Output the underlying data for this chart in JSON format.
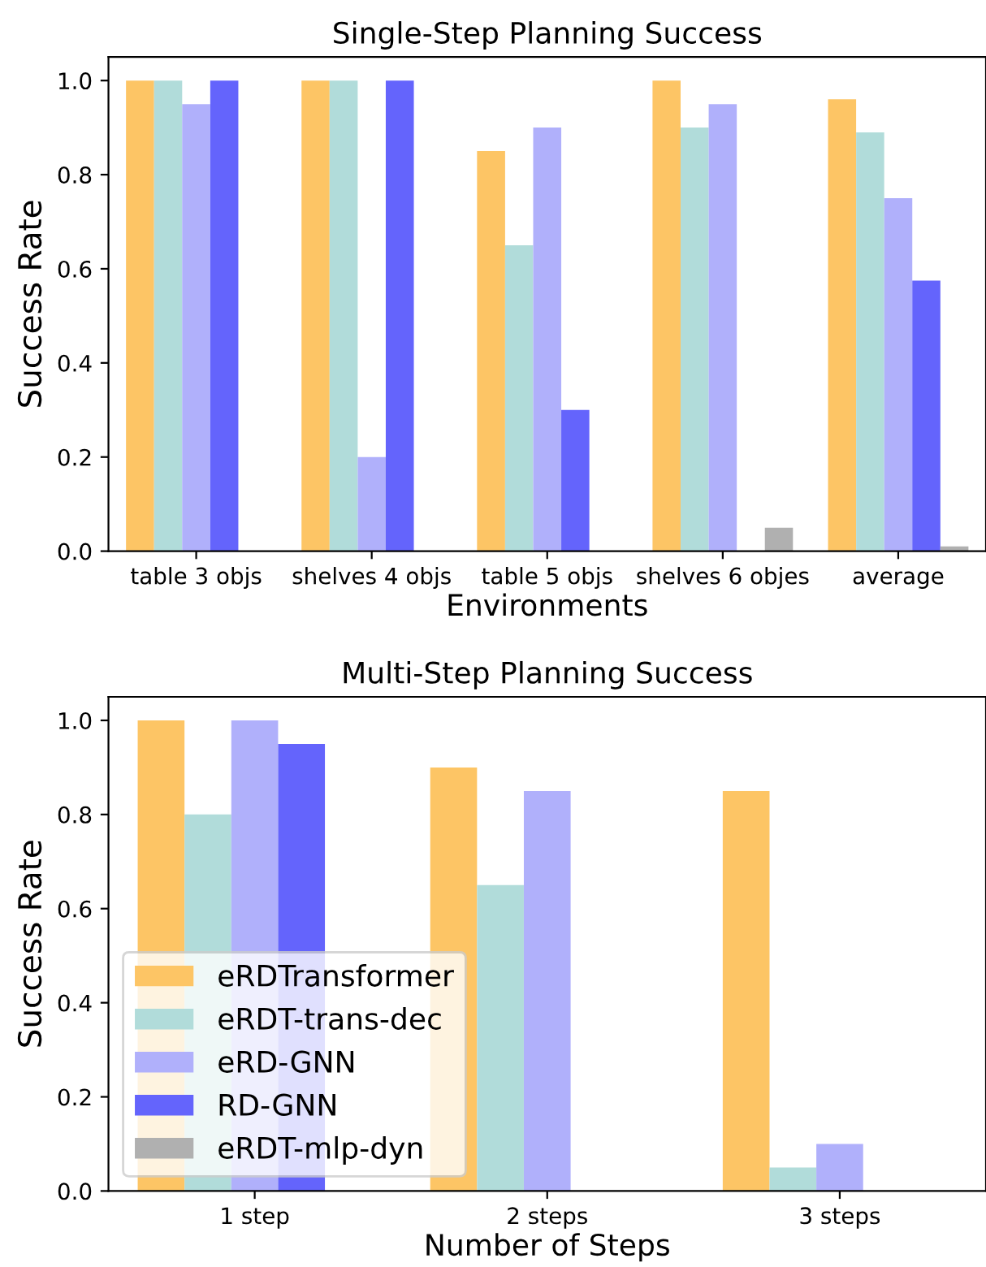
{
  "chart_data": [
    {
      "type": "bar",
      "title": "Single-Step Planning Success",
      "xlabel": "Environments",
      "ylabel": "Success Rate",
      "categories": [
        "table 3 objs",
        "shelves 4 objs",
        "table 5 objs",
        "shelves 6 objes",
        "average"
      ],
      "ylim": [
        0,
        1.05
      ],
      "yticks": [
        {
          "value": 0,
          "label": "0.0"
        },
        {
          "value": 0.2,
          "label": "0.2"
        },
        {
          "value": 0.4,
          "label": "0.4"
        },
        {
          "value": 0.6,
          "label": "0.6"
        },
        {
          "value": 0.8,
          "label": "0.8"
        },
        {
          "value": 1,
          "label": "1.0"
        }
      ],
      "grid": false,
      "legend": false,
      "series": [
        {
          "color": "#fdc565",
          "values": [
            1,
            1,
            0.85,
            1,
            0.96
          ]
        },
        {
          "color": "#b1dcda",
          "values": [
            1,
            1,
            0.65,
            0.9,
            0.89
          ]
        },
        {
          "color": "#b0b0fb",
          "values": [
            0.95,
            0.2,
            0.9,
            0.95,
            0.75
          ]
        },
        {
          "color": "#6464fc",
          "values": [
            1,
            1,
            0.3,
            0,
            0.575
          ]
        },
        {
          "color": "#b0b0b0",
          "values": [
            0,
            0,
            0,
            0.05,
            0.01
          ]
        }
      ]
    },
    {
      "type": "bar",
      "title": "Multi-Step Planning Success",
      "xlabel": "Number of Steps",
      "ylabel": "Success Rate",
      "categories": [
        "1 step",
        "2 steps",
        "3 steps"
      ],
      "ylim": [
        0,
        1.05
      ],
      "yticks": [
        {
          "value": 0,
          "label": "0.0"
        },
        {
          "value": 0.2,
          "label": "0.2"
        },
        {
          "value": 0.4,
          "label": "0.4"
        },
        {
          "value": 0.6,
          "label": "0.6"
        },
        {
          "value": 0.8,
          "label": "0.8"
        },
        {
          "value": 1,
          "label": "1.0"
        }
      ],
      "grid": false,
      "legend": "bottom left",
      "series": [
        {
          "name": "eRDTransformer",
          "color": "#fdc565",
          "values": [
            1,
            0.9,
            0.85
          ]
        },
        {
          "name": "eRDT-trans-dec",
          "color": "#b1dcda",
          "values": [
            0.8,
            0.65,
            0.05
          ]
        },
        {
          "name": "eRD-GNN",
          "color": "#b0b0fb",
          "values": [
            1,
            0.85,
            0.1
          ]
        },
        {
          "name": "RD-GNN",
          "color": "#6464fc",
          "values": [
            0.95,
            0,
            0
          ]
        },
        {
          "name": "eRDT-mlp-dyn",
          "color": "#b0b0b0",
          "values": [
            0,
            0,
            0
          ]
        }
      ]
    }
  ]
}
